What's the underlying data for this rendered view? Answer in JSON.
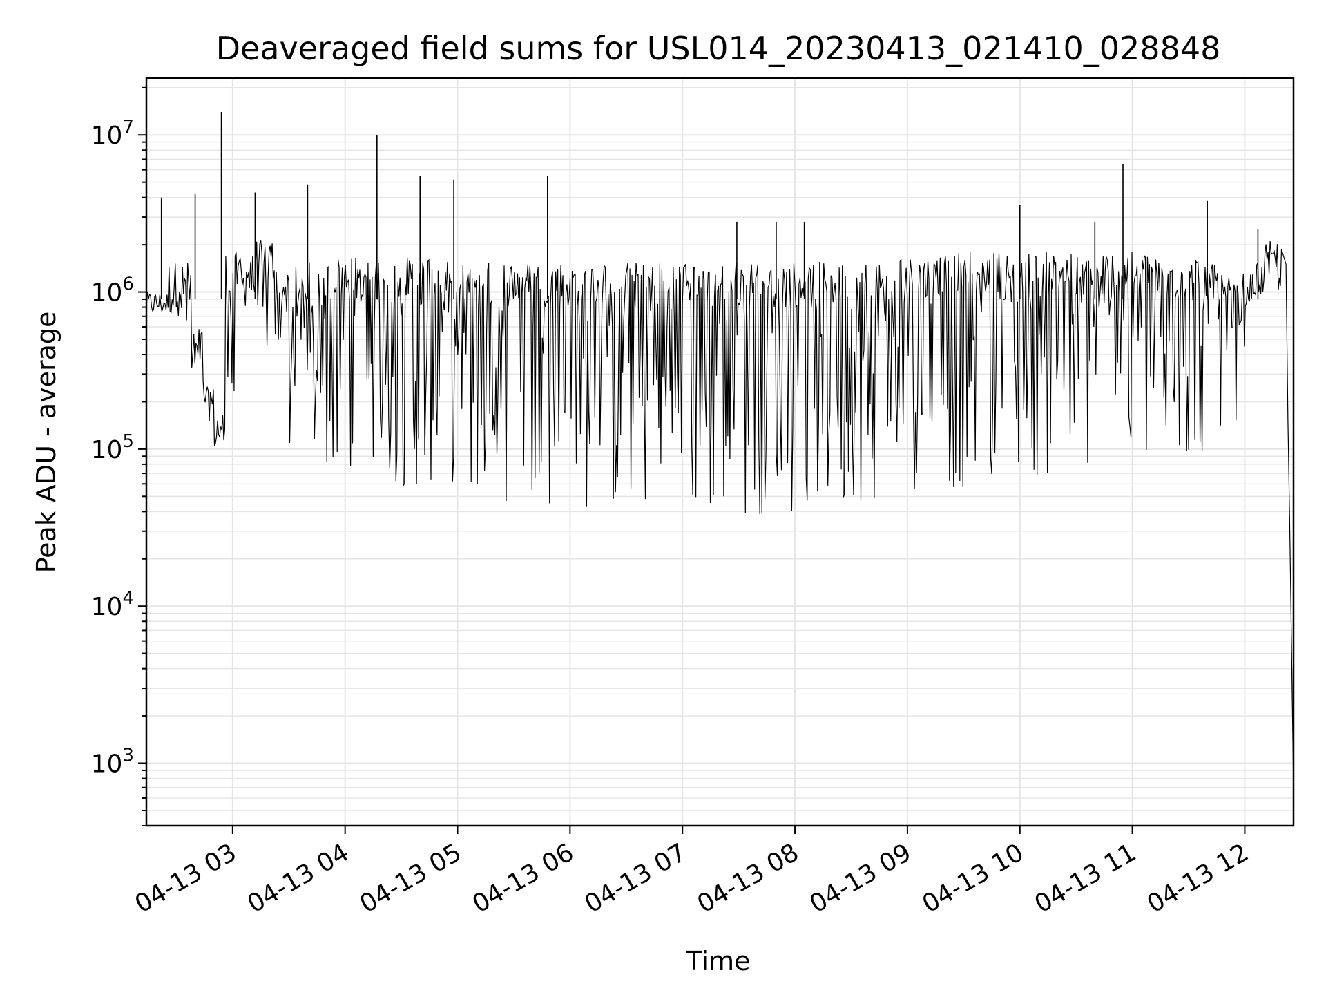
{
  "chart_data": {
    "type": "line",
    "title": "Deaveraged field sums for USL014_20230413_021410_028848",
    "xlabel": "Time",
    "ylabel": "Peak ADU - average",
    "yscale": "log",
    "ylim": [
      400,
      23000000
    ],
    "xlim": [
      "2023-04-13 02:14",
      "2023-04-13 12:26"
    ],
    "grid": true,
    "x_tick_labels": [
      "04-13 03",
      "04-13 04",
      "04-13 05",
      "04-13 06",
      "04-13 07",
      "04-13 08",
      "04-13 09",
      "04-13 10",
      "04-13 11",
      "04-13 12"
    ],
    "x_ticks": [
      "2023-04-13 03:00",
      "2023-04-13 04:00",
      "2023-04-13 05:00",
      "2023-04-13 06:00",
      "2023-04-13 07:00",
      "2023-04-13 08:00",
      "2023-04-13 09:00",
      "2023-04-13 10:00",
      "2023-04-13 11:00",
      "2023-04-13 12:00"
    ],
    "y_tick_labels": [
      {
        "base": "10",
        "exp": "3",
        "value": 1000
      },
      {
        "base": "10",
        "exp": "4",
        "value": 10000
      },
      {
        "base": "10",
        "exp": "5",
        "value": 100000
      },
      {
        "base": "10",
        "exp": "6",
        "value": 1000000
      },
      {
        "base": "10",
        "exp": "7",
        "value": 10000000
      }
    ],
    "line_color": "#000000",
    "grid_color": "#e5e5e5",
    "series": [
      {
        "x": [
          "2023-04-13 02:14",
          "2023-04-13 02:20",
          "2023-04-13 02:26",
          "2023-04-13 02:32",
          "2023-04-13 02:38",
          "2023-04-13 02:44",
          "2023-04-13 02:50",
          "2023-04-13 02:56",
          "2023-04-13 03:02",
          "2023-04-13 03:08",
          "2023-04-13 03:15",
          "2023-04-13 03:22",
          "2023-04-13 03:30",
          "2023-04-13 03:38",
          "2023-04-13 03:45",
          "2023-04-13 03:52",
          "2023-04-13 04:00",
          "2023-04-13 04:10",
          "2023-04-13 04:20",
          "2023-04-13 04:30",
          "2023-04-13 04:40",
          "2023-04-13 04:50",
          "2023-04-13 05:00",
          "2023-04-13 05:10",
          "2023-04-13 05:20",
          "2023-04-13 05:30",
          "2023-04-13 05:40",
          "2023-04-13 05:50",
          "2023-04-13 06:00",
          "2023-04-13 06:15",
          "2023-04-13 06:30",
          "2023-04-13 06:45",
          "2023-04-13 07:00",
          "2023-04-13 07:15",
          "2023-04-13 07:30",
          "2023-04-13 07:45",
          "2023-04-13 08:00",
          "2023-04-13 08:15",
          "2023-04-13 08:30",
          "2023-04-13 08:45",
          "2023-04-13 09:00",
          "2023-04-13 09:15",
          "2023-04-13 09:30",
          "2023-04-13 09:45",
          "2023-04-13 10:00",
          "2023-04-13 10:15",
          "2023-04-13 10:30",
          "2023-04-13 10:45",
          "2023-04-13 11:00",
          "2023-04-13 11:15",
          "2023-04-13 11:30",
          "2023-04-13 11:45",
          "2023-04-13 12:00",
          "2023-04-13 12:05",
          "2023-04-13 12:10",
          "2023-04-13 12:15",
          "2023-04-13 12:20",
          "2023-04-13 12:24",
          "2023-04-13 12:26"
        ],
        "y": [
          850000,
          900000,
          700000,
          1300000,
          500000,
          250000,
          150000,
          100000,
          1500000,
          800000,
          1800000,
          400000,
          1200000,
          80000,
          1300000,
          70000,
          1400000,
          60000,
          1400000,
          55000,
          1400000,
          60000,
          1300000,
          50000,
          1300000,
          45000,
          1300000,
          45000,
          1300000,
          40000,
          1300000,
          40000,
          1300000,
          38000,
          1300000,
          38000,
          1300000,
          40000,
          1300000,
          45000,
          1400000,
          55000,
          1500000,
          60000,
          1500000,
          65000,
          1500000,
          70000,
          1500000,
          75000,
          1400000,
          90000,
          1100000,
          900000,
          1500000,
          1800000,
          1000000,
          30000,
          700
        ]
      }
    ],
    "spikes": [
      {
        "x": "2023-04-13 02:22",
        "y": 4000000
      },
      {
        "x": "2023-04-13 02:40",
        "y": 4200000
      },
      {
        "x": "2023-04-13 02:54",
        "y": 14000000
      },
      {
        "x": "2023-04-13 03:12",
        "y": 4300000
      },
      {
        "x": "2023-04-13 03:40",
        "y": 4800000
      },
      {
        "x": "2023-04-13 04:17",
        "y": 10000000
      },
      {
        "x": "2023-04-13 04:40",
        "y": 5500000
      },
      {
        "x": "2023-04-13 04:58",
        "y": 5200000
      },
      {
        "x": "2023-04-13 05:48",
        "y": 5500000
      },
      {
        "x": "2023-04-13 07:29",
        "y": 2800000
      },
      {
        "x": "2023-04-13 07:50",
        "y": 2800000
      },
      {
        "x": "2023-04-13 08:05",
        "y": 2800000
      },
      {
        "x": "2023-04-13 10:00",
        "y": 3600000
      },
      {
        "x": "2023-04-13 10:40",
        "y": 2800000
      },
      {
        "x": "2023-04-13 10:55",
        "y": 6500000
      },
      {
        "x": "2023-04-13 11:40",
        "y": 3800000
      },
      {
        "x": "2023-04-13 12:07",
        "y": 2500000
      }
    ]
  }
}
